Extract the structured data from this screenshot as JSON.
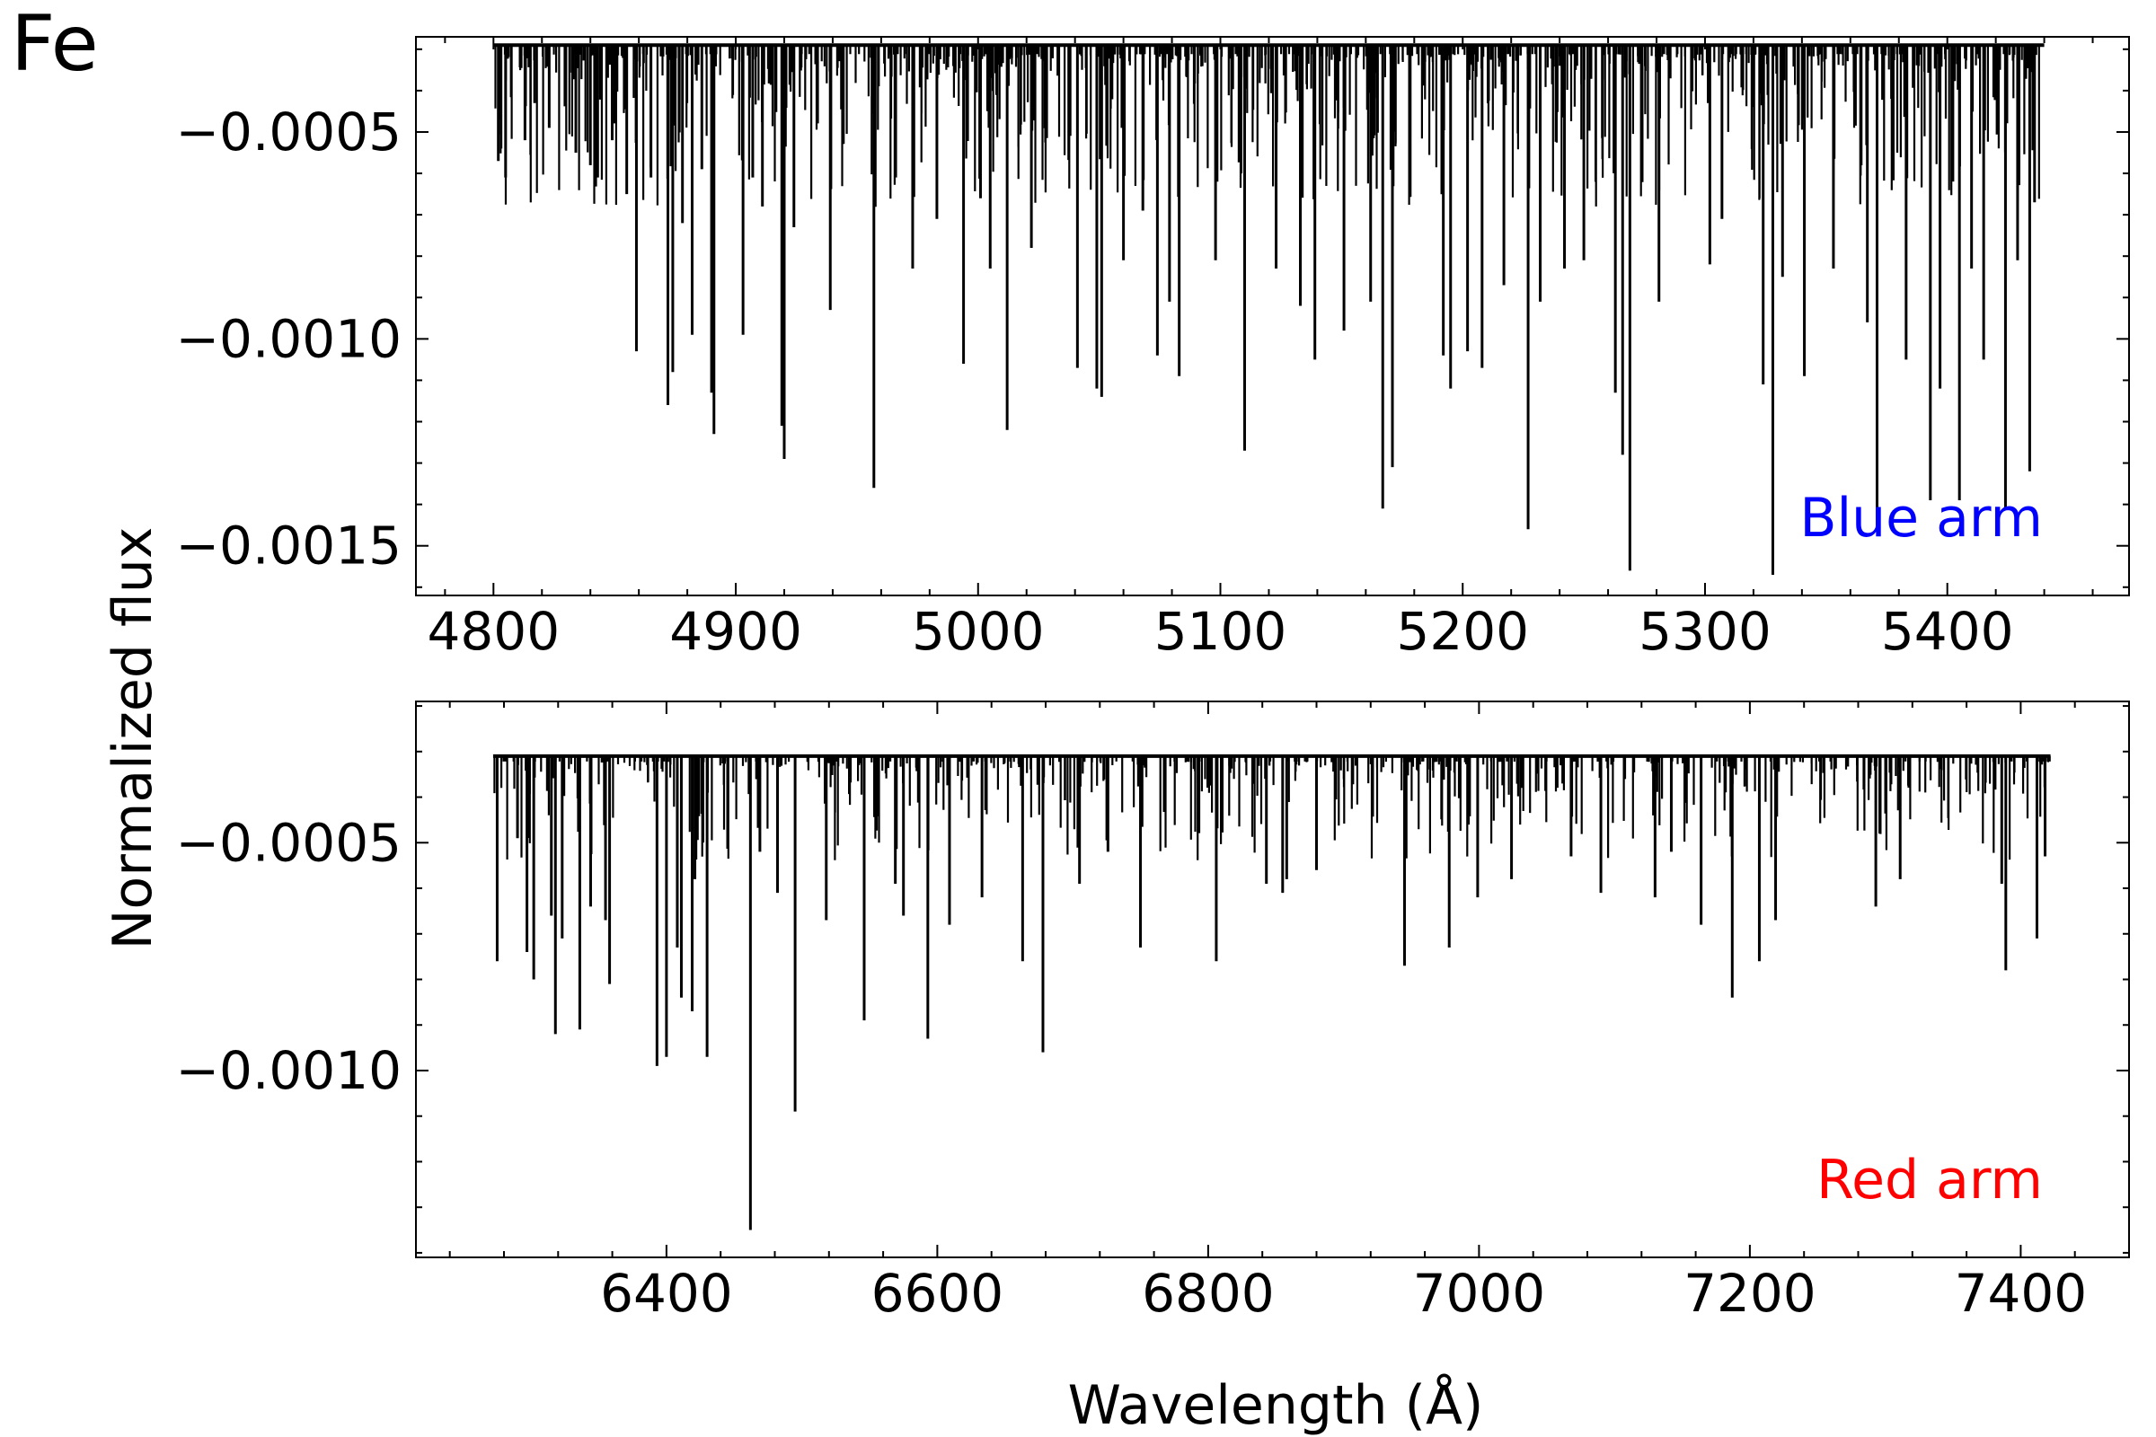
{
  "figure": {
    "element_label": "Fe",
    "ylabel": "Normalized flux",
    "xlabel": "Wavelength (Å)"
  },
  "chart_data": [
    {
      "type": "line",
      "panel": "Blue arm",
      "label_color": "#0000ff",
      "xlim": [
        4768,
        5475
      ],
      "ylim": [
        -0.00162,
        -0.00027
      ],
      "xticks": [
        "4800",
        "4900",
        "5000",
        "5100",
        "5200",
        "5300",
        "5400"
      ],
      "yticks": [
        "−0.0005",
        "−0.0010",
        "−0.0015"
      ],
      "x_range": [
        4800,
        5440
      ],
      "continuum": -0.00029,
      "lines": [
        {
          "x": 4802,
          "y": -0.00057
        },
        {
          "x": 4805,
          "y": -0.00061
        },
        {
          "x": 4813,
          "y": -0.00052
        },
        {
          "x": 4817,
          "y": -0.00043
        },
        {
          "x": 4823,
          "y": -0.00049
        },
        {
          "x": 4834,
          "y": -0.00055
        },
        {
          "x": 4840,
          "y": -0.00058
        },
        {
          "x": 4843,
          "y": -0.00061
        },
        {
          "x": 4849,
          "y": -0.00052
        },
        {
          "x": 4855,
          "y": -0.00065
        },
        {
          "x": 4859,
          "y": -0.00103
        },
        {
          "x": 4865,
          "y": -0.00061
        },
        {
          "x": 4872,
          "y": -0.00116
        },
        {
          "x": 4874,
          "y": -0.00108
        },
        {
          "x": 4878,
          "y": -0.00072
        },
        {
          "x": 4882,
          "y": -0.00099
        },
        {
          "x": 4886,
          "y": -0.00059
        },
        {
          "x": 4890,
          "y": -0.00113
        },
        {
          "x": 4891,
          "y": -0.00123
        },
        {
          "x": 4903,
          "y": -0.00099
        },
        {
          "x": 4907,
          "y": -0.00061
        },
        {
          "x": 4911,
          "y": -0.00068
        },
        {
          "x": 4919,
          "y": -0.00121
        },
        {
          "x": 4920,
          "y": -0.00129
        },
        {
          "x": 4924,
          "y": -0.00073
        },
        {
          "x": 4939,
          "y": -0.00093
        },
        {
          "x": 4957,
          "y": -0.00136
        },
        {
          "x": 4966,
          "y": -0.00061
        },
        {
          "x": 4973,
          "y": -0.00083
        },
        {
          "x": 4983,
          "y": -0.00071
        },
        {
          "x": 4994,
          "y": -0.00106
        },
        {
          "x": 5001,
          "y": -0.00066
        },
        {
          "x": 5005,
          "y": -0.00083
        },
        {
          "x": 5012,
          "y": -0.00122
        },
        {
          "x": 5022,
          "y": -0.00078
        },
        {
          "x": 5041,
          "y": -0.00107
        },
        {
          "x": 5049,
          "y": -0.00112
        },
        {
          "x": 5051,
          "y": -0.00114
        },
        {
          "x": 5060,
          "y": -0.00081
        },
        {
          "x": 5068,
          "y": -0.00069
        },
        {
          "x": 5074,
          "y": -0.00104
        },
        {
          "x": 5079,
          "y": -0.00091
        },
        {
          "x": 5083,
          "y": -0.00109
        },
        {
          "x": 5098,
          "y": -0.00081
        },
        {
          "x": 5110,
          "y": -0.00127
        },
        {
          "x": 5123,
          "y": -0.00083
        },
        {
          "x": 5133,
          "y": -0.00092
        },
        {
          "x": 5139,
          "y": -0.00105
        },
        {
          "x": 5151,
          "y": -0.00098
        },
        {
          "x": 5162,
          "y": -0.00091
        },
        {
          "x": 5167,
          "y": -0.00141
        },
        {
          "x": 5171,
          "y": -0.00131
        },
        {
          "x": 5192,
          "y": -0.00104
        },
        {
          "x": 5195,
          "y": -0.00112
        },
        {
          "x": 5202,
          "y": -0.00103
        },
        {
          "x": 5208,
          "y": -0.00107
        },
        {
          "x": 5217,
          "y": -0.00087
        },
        {
          "x": 5227,
          "y": -0.00146
        },
        {
          "x": 5232,
          "y": -0.00091
        },
        {
          "x": 5242,
          "y": -0.00083
        },
        {
          "x": 5250,
          "y": -0.00081
        },
        {
          "x": 5263,
          "y": -0.00113
        },
        {
          "x": 5266,
          "y": -0.00128
        },
        {
          "x": 5269,
          "y": -0.00156
        },
        {
          "x": 5281,
          "y": -0.00091
        },
        {
          "x": 5302,
          "y": -0.00082
        },
        {
          "x": 5307,
          "y": -0.00071
        },
        {
          "x": 5324,
          "y": -0.00111
        },
        {
          "x": 5328,
          "y": -0.00157
        },
        {
          "x": 5332,
          "y": -0.00085
        },
        {
          "x": 5341,
          "y": -0.00109
        },
        {
          "x": 5353,
          "y": -0.00083
        },
        {
          "x": 5367,
          "y": -0.00096
        },
        {
          "x": 5371,
          "y": -0.00146
        },
        {
          "x": 5383,
          "y": -0.00105
        },
        {
          "x": 5393,
          "y": -0.00139
        },
        {
          "x": 5397,
          "y": -0.00112
        },
        {
          "x": 5405,
          "y": -0.00139
        },
        {
          "x": 5410,
          "y": -0.00083
        },
        {
          "x": 5415,
          "y": -0.00105
        },
        {
          "x": 5424,
          "y": -0.00141
        },
        {
          "x": 5429,
          "y": -0.00081
        },
        {
          "x": 5434,
          "y": -0.00132
        },
        {
          "x": 5436,
          "y": -0.00067
        }
      ]
    },
    {
      "type": "line",
      "panel": "Red arm",
      "label_color": "#ff0000",
      "xlim": [
        6215,
        7480
      ],
      "ylim": [
        -0.00141,
        -0.00019
      ],
      "xticks": [
        "6400",
        "6600",
        "6800",
        "7000",
        "7200",
        "7400"
      ],
      "yticks": [
        "−0.0005",
        "−0.0010"
      ],
      "x_range": [
        6272,
        7422
      ],
      "continuum": -0.00031,
      "lines": [
        {
          "x": 6275,
          "y": -0.00076
        },
        {
          "x": 6290,
          "y": -0.00049
        },
        {
          "x": 6297,
          "y": -0.00074
        },
        {
          "x": 6302,
          "y": -0.0008
        },
        {
          "x": 6315,
          "y": -0.00066
        },
        {
          "x": 6318,
          "y": -0.00092
        },
        {
          "x": 6323,
          "y": -0.00071
        },
        {
          "x": 6336,
          "y": -0.00091
        },
        {
          "x": 6344,
          "y": -0.00064
        },
        {
          "x": 6355,
          "y": -0.00067
        },
        {
          "x": 6358,
          "y": -0.00081
        },
        {
          "x": 6393,
          "y": -0.00099
        },
        {
          "x": 6400,
          "y": -0.00097
        },
        {
          "x": 6408,
          "y": -0.00073
        },
        {
          "x": 6411,
          "y": -0.00084
        },
        {
          "x": 6419,
          "y": -0.00087
        },
        {
          "x": 6421,
          "y": -0.00058
        },
        {
          "x": 6430,
          "y": -0.00097
        },
        {
          "x": 6462,
          "y": -0.00135
        },
        {
          "x": 6469,
          "y": -0.00052
        },
        {
          "x": 6482,
          "y": -0.00061
        },
        {
          "x": 6495,
          "y": -0.00109
        },
        {
          "x": 6518,
          "y": -0.00067
        },
        {
          "x": 6546,
          "y": -0.00089
        },
        {
          "x": 6569,
          "y": -0.00059
        },
        {
          "x": 6575,
          "y": -0.00066
        },
        {
          "x": 6593,
          "y": -0.00093
        },
        {
          "x": 6609,
          "y": -0.00068
        },
        {
          "x": 6633,
          "y": -0.00062
        },
        {
          "x": 6663,
          "y": -0.00076
        },
        {
          "x": 6678,
          "y": -0.00096
        },
        {
          "x": 6705,
          "y": -0.00059
        },
        {
          "x": 6726,
          "y": -0.00052
        },
        {
          "x": 6750,
          "y": -0.00073
        },
        {
          "x": 6806,
          "y": -0.00076
        },
        {
          "x": 6843,
          "y": -0.00059
        },
        {
          "x": 6855,
          "y": -0.00061
        },
        {
          "x": 6858,
          "y": -0.00058
        },
        {
          "x": 6880,
          "y": -0.00056
        },
        {
          "x": 6945,
          "y": -0.00077
        },
        {
          "x": 6978,
          "y": -0.00073
        },
        {
          "x": 6999,
          "y": -0.00062
        },
        {
          "x": 7024,
          "y": -0.00058
        },
        {
          "x": 7068,
          "y": -0.00053
        },
        {
          "x": 7090,
          "y": -0.00061
        },
        {
          "x": 7130,
          "y": -0.00062
        },
        {
          "x": 7142,
          "y": -0.00052
        },
        {
          "x": 7164,
          "y": -0.00068
        },
        {
          "x": 7187,
          "y": -0.00084
        },
        {
          "x": 7207,
          "y": -0.00076
        },
        {
          "x": 7219,
          "y": -0.00067
        },
        {
          "x": 7293,
          "y": -0.00064
        },
        {
          "x": 7311,
          "y": -0.00058
        },
        {
          "x": 7386,
          "y": -0.00059
        },
        {
          "x": 7389,
          "y": -0.00078
        },
        {
          "x": 7412,
          "y": -0.00071
        },
        {
          "x": 7418,
          "y": -0.00053
        }
      ]
    }
  ]
}
